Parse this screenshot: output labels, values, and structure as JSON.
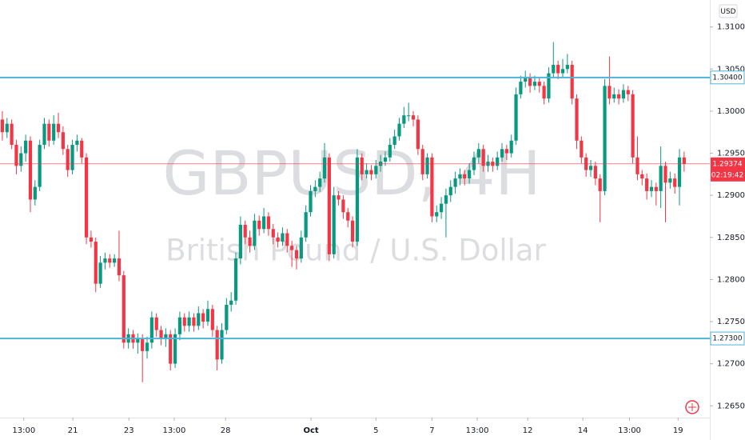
{
  "chart_data": {
    "type": "candlestick",
    "symbol": "GBPUSD, 4H",
    "description": "British Pound / U.S. Dollar",
    "currency": "USD",
    "up_color": "#089981",
    "down_color": "#f23645",
    "level_color": "#4fb3d9",
    "xlim": [
      0,
      152
    ],
    "ylim": [
      1.2636,
      1.3132
    ],
    "xticks": [
      {
        "value": 5.1,
        "label": "13:00"
      },
      {
        "value": 15.6,
        "label": "21"
      },
      {
        "value": 27.6,
        "label": "23"
      },
      {
        "value": 37.3,
        "label": "13:00"
      },
      {
        "value": 48.3,
        "label": "28"
      },
      {
        "value": 66.6,
        "label": "Oct"
      },
      {
        "value": 80.5,
        "label": "5"
      },
      {
        "value": 92.5,
        "label": "7"
      },
      {
        "value": 102.2,
        "label": "13:00"
      },
      {
        "value": 113,
        "label": "12"
      },
      {
        "value": 124.8,
        "label": "14"
      },
      {
        "value": 134.8,
        "label": "13:00"
      },
      {
        "value": 145.2,
        "label": "19"
      }
    ],
    "yticks": [
      {
        "value": 1.31,
        "label": "1.31000"
      },
      {
        "value": 1.305,
        "label": "1.30500"
      },
      {
        "value": 1.3,
        "label": "1.30000"
      },
      {
        "value": 1.295,
        "label": "1.29500"
      },
      {
        "value": 1.29,
        "label": "1.29000"
      },
      {
        "value": 1.285,
        "label": "1.28500"
      },
      {
        "value": 1.28,
        "label": "1.28000"
      },
      {
        "value": 1.275,
        "label": "1.27500"
      },
      {
        "value": 1.27,
        "label": "1.27000"
      },
      {
        "value": 1.265,
        "label": "1.26500"
      }
    ],
    "levels": [
      {
        "value": 1.304,
        "label": "1.30400"
      },
      {
        "value": 1.273,
        "label": "1.27300"
      }
    ],
    "current_price": {
      "value": 1.29374,
      "label": "1.29374"
    },
    "countdown": "02:19:42",
    "candles": [
      [
        1.299,
        1.3,
        1.2965,
        1.2975
      ],
      [
        1.2975,
        1.2992,
        1.2968,
        1.2985
      ],
      [
        1.2985,
        1.299,
        1.2955,
        1.296
      ],
      [
        1.296,
        1.2966,
        1.2925,
        1.2935
      ],
      [
        1.2935,
        1.2958,
        1.2928,
        1.295
      ],
      [
        1.295,
        1.2972,
        1.294,
        1.2965
      ],
      [
        1.2965,
        1.297,
        1.288,
        1.2895
      ],
      [
        1.2895,
        1.2918,
        1.2888,
        1.291
      ],
      [
        1.291,
        1.2966,
        1.2905,
        1.296
      ],
      [
        1.296,
        1.2992,
        1.2955,
        1.2985
      ],
      [
        1.2985,
        1.299,
        1.2958,
        1.2965
      ],
      [
        1.2965,
        1.2995,
        1.296,
        1.2985
      ],
      [
        1.2985,
        1.2998,
        1.2968,
        1.2975
      ],
      [
        1.2975,
        1.2982,
        1.2948,
        1.2955
      ],
      [
        1.2955,
        1.296,
        1.2922,
        1.293
      ],
      [
        1.293,
        1.2966,
        1.2925,
        1.296
      ],
      [
        1.296,
        1.2972,
        1.2952,
        1.2965
      ],
      [
        1.2965,
        1.2968,
        1.2938,
        1.2945
      ],
      [
        1.2945,
        1.295,
        1.2842,
        1.285
      ],
      [
        1.285,
        1.2858,
        1.2838,
        1.2845
      ],
      [
        1.2845,
        1.285,
        1.2785,
        1.2795
      ],
      [
        1.2795,
        1.2828,
        1.279,
        1.282
      ],
      [
        1.282,
        1.2832,
        1.2812,
        1.2825
      ],
      [
        1.2825,
        1.283,
        1.2814,
        1.282
      ],
      [
        1.282,
        1.283,
        1.2815,
        1.2825
      ],
      [
        1.2825,
        1.2858,
        1.2798,
        1.2805
      ],
      [
        1.2805,
        1.281,
        1.2718,
        1.2725
      ],
      [
        1.2725,
        1.2742,
        1.2718,
        1.2735
      ],
      [
        1.2735,
        1.274,
        1.2718,
        1.2725
      ],
      [
        1.2725,
        1.2736,
        1.2712,
        1.273
      ],
      [
        1.273,
        1.2735,
        1.2678,
        1.2715
      ],
      [
        1.2715,
        1.2732,
        1.2706,
        1.2725
      ],
      [
        1.2725,
        1.2762,
        1.2718,
        1.2755
      ],
      [
        1.2755,
        1.276,
        1.2732,
        1.274
      ],
      [
        1.274,
        1.2745,
        1.2722,
        1.273
      ],
      [
        1.273,
        1.2742,
        1.272,
        1.2735
      ],
      [
        1.2735,
        1.274,
        1.2692,
        1.27
      ],
      [
        1.27,
        1.2742,
        1.2695,
        1.2735
      ],
      [
        1.2735,
        1.2762,
        1.2728,
        1.2755
      ],
      [
        1.2755,
        1.276,
        1.2738,
        1.2745
      ],
      [
        1.2745,
        1.2762,
        1.2738,
        1.2755
      ],
      [
        1.2755,
        1.276,
        1.2738,
        1.2745
      ],
      [
        1.2745,
        1.2768,
        1.274,
        1.276
      ],
      [
        1.276,
        1.2765,
        1.2742,
        1.275
      ],
      [
        1.275,
        1.2775,
        1.2745,
        1.2765
      ],
      [
        1.2765,
        1.277,
        1.2732,
        1.274
      ],
      [
        1.274,
        1.2745,
        1.2692,
        1.2705
      ],
      [
        1.2705,
        1.2748,
        1.27,
        1.274
      ],
      [
        1.274,
        1.2778,
        1.2735,
        1.277
      ],
      [
        1.277,
        1.2785,
        1.2762,
        1.2775
      ],
      [
        1.2775,
        1.2832,
        1.277,
        1.2825
      ],
      [
        1.2825,
        1.2875,
        1.2818,
        1.2865
      ],
      [
        1.2865,
        1.287,
        1.2842,
        1.285
      ],
      [
        1.285,
        1.2858,
        1.2832,
        1.284
      ],
      [
        1.284,
        1.2878,
        1.2835,
        1.287
      ],
      [
        1.287,
        1.2876,
        1.2852,
        1.286
      ],
      [
        1.286,
        1.2885,
        1.2855,
        1.2875
      ],
      [
        1.2875,
        1.288,
        1.2852,
        1.286
      ],
      [
        1.286,
        1.2866,
        1.2842,
        1.285
      ],
      [
        1.285,
        1.2856,
        1.2838,
        1.2845
      ],
      [
        1.2845,
        1.2862,
        1.284,
        1.2855
      ],
      [
        1.2855,
        1.286,
        1.2832,
        1.284
      ],
      [
        1.284,
        1.2846,
        1.2815,
        1.2835
      ],
      [
        1.2835,
        1.284,
        1.2812,
        1.2825
      ],
      [
        1.2825,
        1.2858,
        1.282,
        1.285
      ],
      [
        1.285,
        1.2888,
        1.2845,
        1.288
      ],
      [
        1.288,
        1.2912,
        1.2875,
        1.2905
      ],
      [
        1.2905,
        1.2918,
        1.2898,
        1.291
      ],
      [
        1.291,
        1.2928,
        1.2904,
        1.292
      ],
      [
        1.292,
        1.2962,
        1.2915,
        1.2945
      ],
      [
        1.2945,
        1.295,
        1.2822,
        1.283
      ],
      [
        1.283,
        1.291,
        1.2825,
        1.29
      ],
      [
        1.29,
        1.2905,
        1.2888,
        1.2895
      ],
      [
        1.2895,
        1.29,
        1.2872,
        1.288
      ],
      [
        1.288,
        1.2885,
        1.2862,
        1.287
      ],
      [
        1.287,
        1.2875,
        1.2838,
        1.2845
      ],
      [
        1.2845,
        1.2955,
        1.284,
        1.2945
      ],
      [
        1.2945,
        1.295,
        1.2918,
        1.2925
      ],
      [
        1.2925,
        1.2938,
        1.292,
        1.293
      ],
      [
        1.293,
        1.2936,
        1.2918,
        1.2925
      ],
      [
        1.2925,
        1.2942,
        1.292,
        1.2935
      ],
      [
        1.2935,
        1.2948,
        1.2928,
        1.294
      ],
      [
        1.294,
        1.2952,
        1.2935,
        1.2945
      ],
      [
        1.2945,
        1.2968,
        1.294,
        1.296
      ],
      [
        1.296,
        1.2978,
        1.2955,
        1.297
      ],
      [
        1.297,
        1.2992,
        1.2965,
        1.2985
      ],
      [
        1.2985,
        1.3005,
        1.298,
        1.2995
      ],
      [
        1.2995,
        1.301,
        1.2988,
        1.2995
      ],
      [
        1.2995,
        1.3,
        1.2982,
        1.299
      ],
      [
        1.299,
        1.2995,
        1.2948,
        1.2955
      ],
      [
        1.2955,
        1.296,
        1.2918,
        1.2925
      ],
      [
        1.2925,
        1.295,
        1.292,
        1.2945
      ],
      [
        1.2945,
        1.295,
        1.2868,
        1.2875
      ],
      [
        1.2875,
        1.2888,
        1.2868,
        1.288
      ],
      [
        1.288,
        1.2898,
        1.2872,
        1.289
      ],
      [
        1.289,
        1.2908,
        1.285,
        1.29
      ],
      [
        1.29,
        1.2918,
        1.2892,
        1.291
      ],
      [
        1.291,
        1.2928,
        1.2902,
        1.292
      ],
      [
        1.292,
        1.2932,
        1.2912,
        1.2925
      ],
      [
        1.2925,
        1.293,
        1.2912,
        1.292
      ],
      [
        1.292,
        1.2938,
        1.2914,
        1.293
      ],
      [
        1.293,
        1.2952,
        1.2924,
        1.2945
      ],
      [
        1.2945,
        1.2962,
        1.2938,
        1.2955
      ],
      [
        1.2955,
        1.296,
        1.2928,
        1.2935
      ],
      [
        1.2935,
        1.2948,
        1.2928,
        1.294
      ],
      [
        1.294,
        1.2945,
        1.2928,
        1.2935
      ],
      [
        1.2935,
        1.2952,
        1.293,
        1.2945
      ],
      [
        1.2945,
        1.2962,
        1.294,
        1.2955
      ],
      [
        1.2955,
        1.296,
        1.2942,
        1.295
      ],
      [
        1.295,
        1.2972,
        1.2945,
        1.2965
      ],
      [
        1.2965,
        1.3028,
        1.296,
        1.302
      ],
      [
        1.302,
        1.3042,
        1.3015,
        1.3035
      ],
      [
        1.3035,
        1.3048,
        1.3028,
        1.304
      ],
      [
        1.304,
        1.3045,
        1.3022,
        1.303
      ],
      [
        1.303,
        1.3042,
        1.3025,
        1.3035
      ],
      [
        1.3035,
        1.304,
        1.3022,
        1.303
      ],
      [
        1.303,
        1.3035,
        1.3008,
        1.3015
      ],
      [
        1.3015,
        1.3052,
        1.301,
        1.3045
      ],
      [
        1.3045,
        1.3082,
        1.304,
        1.3055
      ],
      [
        1.3055,
        1.306,
        1.3038,
        1.3045
      ],
      [
        1.3045,
        1.3062,
        1.304,
        1.305
      ],
      [
        1.305,
        1.3068,
        1.3045,
        1.3055
      ],
      [
        1.3055,
        1.306,
        1.3008,
        1.3015
      ],
      [
        1.3015,
        1.302,
        1.2955,
        1.2965
      ],
      [
        1.2965,
        1.297,
        1.2938,
        1.2945
      ],
      [
        1.2945,
        1.295,
        1.2922,
        1.293
      ],
      [
        1.293,
        1.2942,
        1.2922,
        1.2935
      ],
      [
        1.2935,
        1.294,
        1.2912,
        1.292
      ],
      [
        1.292,
        1.2925,
        1.2868,
        1.2905
      ],
      [
        1.2905,
        1.3038,
        1.29,
        1.303
      ],
      [
        1.303,
        1.3065,
        1.3008,
        1.3015
      ],
      [
        1.3015,
        1.3028,
        1.301,
        1.302
      ],
      [
        1.302,
        1.3026,
        1.3008,
        1.3015
      ],
      [
        1.3015,
        1.3032,
        1.301,
        1.3025
      ],
      [
        1.3025,
        1.303,
        1.3012,
        1.302
      ],
      [
        1.302,
        1.3025,
        1.2938,
        1.2945
      ],
      [
        1.2945,
        1.297,
        1.2918,
        1.2925
      ],
      [
        1.2925,
        1.293,
        1.2912,
        1.292
      ],
      [
        1.292,
        1.2926,
        1.2895,
        1.2905
      ],
      [
        1.2905,
        1.2918,
        1.2898,
        1.291
      ],
      [
        1.291,
        1.2915,
        1.2888,
        1.2905
      ],
      [
        1.2905,
        1.2958,
        1.2885,
        1.2935
      ],
      [
        1.2935,
        1.294,
        1.2868,
        1.2915
      ],
      [
        1.2915,
        1.2928,
        1.2908,
        1.292
      ],
      [
        1.292,
        1.2926,
        1.2902,
        1.291
      ],
      [
        1.291,
        1.2955,
        1.2888,
        1.2945
      ],
      [
        1.2945,
        1.2952,
        1.2928,
        1.29374
      ]
    ]
  }
}
